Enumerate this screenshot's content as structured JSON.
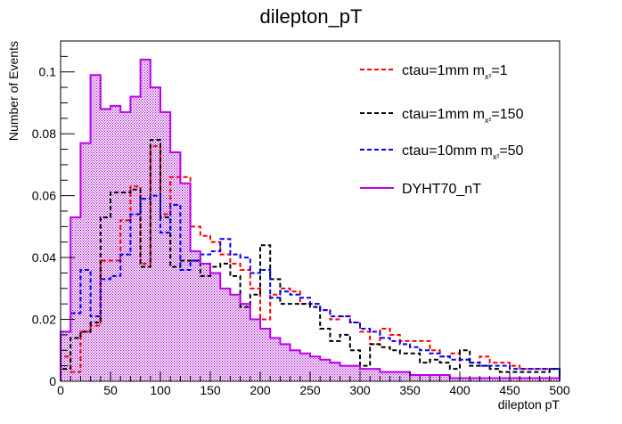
{
  "chart_data": {
    "type": "histogram",
    "title": "dilepton_pT",
    "xlabel": "dilepton pT",
    "ylabel": "Number of Events",
    "xlim": [
      0,
      500
    ],
    "ylim": [
      0,
      0.11
    ],
    "bin_width": 10,
    "x_ticks": [
      0,
      50,
      100,
      150,
      200,
      250,
      300,
      350,
      400,
      450,
      500
    ],
    "y_ticks": [
      0,
      0.02,
      0.04,
      0.06,
      0.08,
      0.1
    ],
    "y_tick_labels": [
      "0",
      "0.02",
      "0.04",
      "0.06",
      "0.08",
      "0.1"
    ],
    "grid": false,
    "legend_position": "top-right",
    "series": [
      {
        "label": "ctau=1mm m",
        "label_sub": "x²",
        "label_suffix": "=1",
        "style": "dashed",
        "color": "#ff0000",
        "values": [
          0.008,
          0.003,
          0.016,
          0.018,
          0.039,
          0.039,
          0.052,
          0.063,
          0.038,
          0.076,
          0.054,
          0.066,
          0.066,
          0.05,
          0.047,
          0.045,
          0.041,
          0.038,
          0.036,
          0.03,
          0.02,
          0.028,
          0.03,
          0.029,
          0.025,
          0.025,
          0.023,
          0.02,
          0.021,
          0.019,
          0.016,
          0.012,
          0.017,
          0.015,
          0.013,
          0.013,
          0.013,
          0.01,
          0.008,
          0.009,
          0.007,
          0.006,
          0.008,
          0.006,
          0.006,
          0.005,
          0.004,
          0.004,
          0.004,
          0.004
        ]
      },
      {
        "label": "ctau=1mm m",
        "label_sub": "x²",
        "label_suffix": "=150",
        "style": "dashed",
        "color": "#000000",
        "values": [
          0.004,
          0.014,
          0.016,
          0.019,
          0.053,
          0.061,
          0.061,
          0.062,
          0.037,
          0.078,
          0.053,
          0.037,
          0.039,
          0.039,
          0.034,
          0.037,
          0.038,
          0.034,
          0.024,
          0.028,
          0.044,
          0.033,
          0.025,
          0.025,
          0.025,
          0.024,
          0.017,
          0.013,
          0.015,
          0.01,
          0.005,
          0.012,
          0.011,
          0.01,
          0.009,
          0.009,
          0.006,
          0.007,
          0.006,
          0.004,
          0.01,
          0.005,
          0.005,
          0.004,
          0.003,
          0.003,
          0.003,
          0.003,
          0.003,
          0.004
        ]
      },
      {
        "label": "ctau=10mm m",
        "label_sub": "x²",
        "label_suffix": "=50",
        "style": "dashed",
        "color": "#0000ff",
        "values": [
          0.016,
          0.022,
          0.036,
          0.021,
          0.033,
          0.034,
          0.041,
          0.054,
          0.059,
          0.06,
          0.048,
          0.057,
          0.036,
          0.039,
          0.041,
          0.042,
          0.046,
          0.041,
          0.04,
          0.035,
          0.036,
          0.027,
          0.029,
          0.028,
          0.027,
          0.025,
          0.023,
          0.021,
          0.021,
          0.019,
          0.017,
          0.016,
          0.014,
          0.013,
          0.012,
          0.011,
          0.01,
          0.009,
          0.008,
          0.007,
          0.007,
          0.006,
          0.005,
          0.005,
          0.005,
          0.004,
          0.004,
          0.004,
          0.004,
          0.004
        ]
      },
      {
        "label": "DYHT70_nT",
        "style": "solid-filled",
        "color": "#bb00ee",
        "fill_color": "#e8c8f0",
        "values": [
          0.016,
          0.053,
          0.077,
          0.099,
          0.088,
          0.089,
          0.087,
          0.092,
          0.104,
          0.095,
          0.087,
          0.074,
          0.064,
          0.042,
          0.038,
          0.035,
          0.03,
          0.028,
          0.025,
          0.02,
          0.017,
          0.014,
          0.012,
          0.01,
          0.009,
          0.008,
          0.007,
          0.006,
          0.005,
          0.005,
          0.004,
          0.004,
          0.003,
          0.003,
          0.003,
          0.002,
          0.002,
          0.002,
          0.002,
          0.001,
          0.001,
          0.001,
          0.001,
          0.001,
          0.001,
          0.001,
          0.001,
          0.001,
          0.001,
          0.001
        ]
      }
    ]
  }
}
